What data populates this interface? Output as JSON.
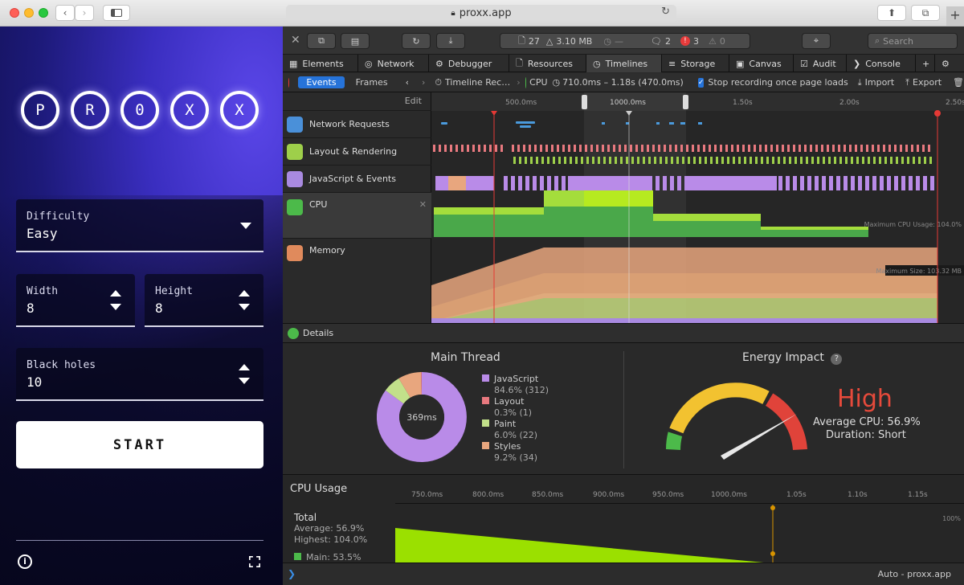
{
  "browser": {
    "url": "proxx.app",
    "plus": "+"
  },
  "app": {
    "logo_letters": [
      "P",
      "R",
      "0",
      "X",
      "X"
    ],
    "difficulty": {
      "label": "Difficulty",
      "value": "Easy"
    },
    "width": {
      "label": "Width",
      "value": "8"
    },
    "height": {
      "label": "Height",
      "value": "8"
    },
    "black_holes": {
      "label": "Black holes",
      "value": "10"
    },
    "start_label": "START"
  },
  "devtools": {
    "resources": {
      "count": "27",
      "size": "3.10 MB",
      "load": "—",
      "logs": "2",
      "errors": "3",
      "warnings": "0"
    },
    "search_placeholder": "Search",
    "tabs": [
      "Elements",
      "Network",
      "Debugger",
      "Resources",
      "Timelines",
      "Storage",
      "Canvas",
      "Audit",
      "Console"
    ],
    "active_tab": "Timelines",
    "timeline_bar": {
      "events": "Events",
      "frames": "Frames",
      "recording": "Timeline Rec…",
      "cpu": "CPU",
      "range": "710.0ms – 1.18s (470.0ms)",
      "stop_recording": "Stop recording once page loads",
      "import": "Import",
      "export": "Export"
    },
    "ruler": {
      "edit": "Edit",
      "ticks": [
        "500.0ms",
        "1000.0ms",
        "1.50s",
        "2.00s",
        "2.50s"
      ]
    },
    "rows": [
      "Network Requests",
      "Layout & Rendering",
      "JavaScript & Events",
      "CPU",
      "Memory"
    ],
    "max_cpu": "Maximum CPU Usage: 104.0%",
    "max_size": "Maximum Size: 103.32 MB",
    "details_label": "Details",
    "main_thread": {
      "title": "Main Thread",
      "center": "369ms",
      "legend": [
        {
          "name": "JavaScript",
          "stat": "84.6% (312)",
          "color": "#b98be8"
        },
        {
          "name": "Layout",
          "stat": "0.3% (1)",
          "color": "#e8797f"
        },
        {
          "name": "Paint",
          "stat": "6.0% (22)",
          "color": "#c2e08a"
        },
        {
          "name": "Styles",
          "stat": "9.2% (34)",
          "color": "#e8a67e"
        }
      ]
    },
    "energy": {
      "title": "Energy Impact",
      "help": "?",
      "level": "High",
      "average": "Average CPU: 56.9%",
      "duration": "Duration: Short"
    },
    "cpu_usage": {
      "title": "CPU Usage",
      "ticks": [
        "750.0ms",
        "800.0ms",
        "850.0ms",
        "900.0ms",
        "950.0ms",
        "1000.0ms",
        "1.05s",
        "1.10s",
        "1.15s"
      ],
      "total": "Total",
      "average": "Average: 56.9%",
      "highest": "Highest: 104.0%",
      "main": "Main: 53.5%",
      "scale": "100%"
    },
    "console_target": "Auto - proxx.app"
  }
}
